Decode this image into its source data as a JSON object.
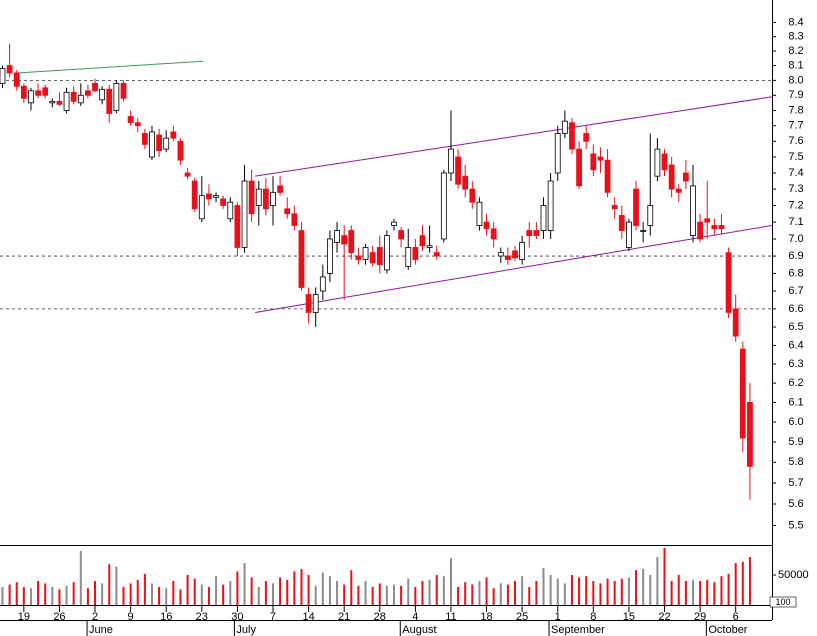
{
  "chart_data": {
    "type": "candlestick",
    "log_scale": true,
    "up_color": "#ffffff",
    "down_color": "#e8101a",
    "volume_up_color": "#8c8c8c",
    "volume_down_color": "#e8101a",
    "ylim": [
      5.41,
      8.56
    ],
    "yticks": [
      5.5,
      5.6,
      5.7,
      5.8,
      5.9,
      {
        "value": 6,
        "label": "6.0"
      },
      6.1,
      6.2,
      6.3,
      6.4,
      6.5,
      6.6,
      6.7,
      6.8,
      6.9,
      {
        "value": 7,
        "label": "7.0"
      },
      7.1,
      7.2,
      7.3,
      7.4,
      7.5,
      7.6,
      7.7,
      7.8,
      7.9,
      {
        "value": 8,
        "label": "8.0"
      },
      8.1,
      8.2,
      8.3,
      8.4
    ],
    "volume_ylim": [
      0,
      95000
    ],
    "volume_yticks": [
      50000
    ],
    "volume_note": "100",
    "xlim": [
      -0.35,
      108.1
    ],
    "xticks": [
      {
        "value": 3,
        "label": "19"
      },
      {
        "value": 8,
        "label": "26"
      },
      {
        "value": 13,
        "label": "2"
      },
      {
        "value": 18,
        "label": "9"
      },
      {
        "value": 23,
        "label": "16"
      },
      {
        "value": 28,
        "label": "23"
      },
      {
        "value": 33,
        "label": "30"
      },
      {
        "value": 38,
        "label": "7"
      },
      {
        "value": 43,
        "label": "14"
      },
      {
        "value": 48,
        "label": "21"
      },
      {
        "value": 53,
        "label": "28"
      },
      {
        "value": 58,
        "label": "4"
      },
      {
        "value": 63,
        "label": "11"
      },
      {
        "value": 68,
        "label": "18"
      },
      {
        "value": 73,
        "label": "25"
      },
      {
        "value": 78,
        "label": "1"
      },
      {
        "value": 83,
        "label": "8"
      },
      {
        "value": 88,
        "label": "15"
      },
      {
        "value": 93,
        "label": "22"
      },
      {
        "value": 98,
        "label": "29"
      },
      {
        "value": 103,
        "label": "6"
      }
    ],
    "month_ticks": [
      {
        "value": 12.3,
        "label": "June"
      },
      {
        "value": 33,
        "label": "July"
      },
      {
        "value": 56.3,
        "label": "August"
      },
      {
        "value": 77.2,
        "label": "September"
      },
      {
        "value": 99.3,
        "label": "October"
      }
    ],
    "hlines": [
      8.0,
      6.9,
      6.6
    ],
    "trendlines": [
      {
        "color": "#3a9a5a",
        "x": [
          2.0,
          28.2
        ],
        "y": [
          8.05,
          8.13
        ]
      },
      {
        "color": "#8b1a9a",
        "x": [
          35.5,
          108.1
        ],
        "y": [
          7.38,
          7.89
        ]
      },
      {
        "color": "#8b1a9a",
        "x": [
          35.5,
          108.1
        ],
        "y": [
          6.58,
          7.08
        ]
      }
    ],
    "open": [
      7.98,
      8.1,
      8.05,
      7.96,
      7.85,
      7.93,
      7.95,
      7.85,
      7.86,
      7.8,
      7.92,
      7.85,
      7.93,
      7.98,
      7.87,
      7.94,
      7.8,
      7.98,
      7.76,
      7.72,
      7.65,
      7.5,
      7.64,
      7.55,
      7.66,
      7.6,
      7.4,
      7.35,
      7.12,
      7.27,
      7.25,
      7.24,
      7.12,
      7.2,
      6.95,
      7.35,
      7.2,
      7.3,
      7.2,
      7.32,
      7.18,
      7.15,
      7.05,
      6.68,
      6.58,
      6.7,
      6.8,
      6.98,
      7.02,
      7.05,
      6.9,
      6.88,
      6.92,
      6.95,
      6.82,
      7.08,
      7.05,
      6.84,
      6.95,
      7.02,
      6.95,
      6.92,
      7.0,
      7.4,
      7.5,
      7.38,
      7.3,
      7.08,
      7.1,
      7.06,
      6.9,
      6.9,
      6.93,
      6.88,
      7.05,
      7.05,
      7.05,
      7.05,
      7.4,
      7.65,
      7.72,
      7.55,
      7.65,
      7.52,
      7.5,
      7.48,
      7.2,
      7.14,
      6.95,
      7.3,
      7.05,
      7.08,
      7.38,
      7.52,
      7.45,
      7.3,
      7.4,
      7.02,
      7.1,
      7.12,
      7.08,
      7.08,
      6.92,
      6.6,
      6.38,
      6.1
    ],
    "high": [
      8.1,
      8.25,
      8.07,
      7.98,
      7.95,
      7.98,
      7.97,
      7.88,
      7.92,
      7.95,
      7.96,
      7.98,
      7.97,
      8.01,
      7.96,
      7.97,
      8.0,
      8.0,
      7.8,
      7.75,
      7.68,
      7.7,
      7.68,
      7.67,
      7.7,
      7.62,
      7.43,
      7.37,
      7.38,
      7.33,
      7.28,
      7.26,
      7.25,
      7.22,
      7.45,
      7.42,
      7.35,
      7.37,
      7.38,
      7.38,
      7.25,
      7.2,
      7.1,
      6.72,
      6.72,
      6.85,
      7.05,
      7.1,
      7.08,
      7.08,
      6.95,
      6.97,
      6.96,
      7.02,
      7.05,
      7.12,
      7.07,
      7.06,
      7.0,
      7.08,
      7.08,
      6.96,
      7.42,
      7.8,
      7.55,
      7.45,
      7.35,
      7.25,
      7.15,
      7.1,
      6.95,
      6.95,
      6.96,
      7.02,
      7.1,
      7.1,
      7.25,
      7.4,
      7.7,
      7.8,
      7.75,
      7.6,
      7.7,
      7.58,
      7.56,
      7.55,
      7.25,
      7.2,
      7.12,
      7.35,
      7.1,
      7.65,
      7.62,
      7.55,
      7.5,
      7.33,
      7.48,
      7.45,
      7.15,
      7.35,
      7.12,
      7.15,
      6.95,
      6.68,
      6.42,
      6.2
    ],
    "low": [
      7.95,
      8.02,
      7.93,
      7.85,
      7.8,
      7.88,
      7.88,
      7.82,
      7.83,
      7.78,
      7.84,
      7.83,
      7.88,
      7.92,
      7.84,
      7.72,
      7.78,
      7.86,
      7.7,
      7.66,
      7.55,
      7.48,
      7.5,
      7.53,
      7.6,
      7.45,
      7.36,
      7.16,
      7.1,
      7.2,
      7.22,
      7.18,
      7.1,
      6.9,
      6.92,
      7.1,
      7.08,
      7.14,
      7.08,
      7.26,
      7.12,
      7.05,
      6.7,
      6.52,
      6.5,
      6.65,
      6.75,
      6.92,
      6.65,
      6.88,
      6.85,
      6.85,
      6.84,
      6.8,
      6.8,
      7.05,
      6.95,
      6.82,
      6.85,
      6.93,
      6.92,
      6.88,
      6.98,
      7.35,
      7.3,
      7.25,
      7.18,
      7.05,
      7.02,
      6.95,
      6.86,
      6.85,
      6.87,
      6.85,
      6.95,
      7.0,
      7.0,
      7.0,
      7.35,
      7.62,
      7.52,
      7.3,
      7.55,
      7.38,
      7.4,
      7.25,
      7.12,
      7.0,
      6.93,
      7.05,
      6.98,
      7.02,
      7.35,
      7.38,
      7.25,
      7.22,
      7.3,
      6.98,
      6.98,
      7.0,
      7.02,
      7.03,
      6.55,
      6.42,
      5.85,
      5.62
    ],
    "close": [
      8.08,
      8.05,
      7.96,
      7.88,
      7.93,
      7.9,
      7.9,
      7.86,
      7.84,
      7.92,
      7.86,
      7.9,
      7.9,
      7.93,
      7.94,
      7.78,
      7.98,
      7.88,
      7.72,
      7.7,
      7.58,
      7.66,
      7.54,
      7.62,
      7.62,
      7.48,
      7.38,
      7.18,
      7.26,
      7.24,
      7.26,
      7.2,
      7.22,
      6.95,
      7.35,
      7.15,
      7.3,
      7.18,
      7.28,
      7.28,
      7.15,
      7.08,
      6.72,
      6.58,
      6.68,
      6.78,
      7.0,
      7.05,
      6.97,
      6.92,
      6.88,
      6.95,
      6.86,
      6.85,
      7.02,
      7.1,
      7.0,
      6.95,
      6.88,
      6.96,
      6.96,
      6.9,
      7.4,
      7.55,
      7.33,
      7.3,
      7.22,
      7.22,
      7.06,
      7.0,
      6.92,
      6.88,
      6.89,
      6.98,
      7.02,
      7.02,
      7.2,
      7.35,
      7.65,
      7.73,
      7.55,
      7.32,
      7.6,
      7.42,
      7.48,
      7.28,
      7.18,
      7.05,
      7.1,
      7.08,
      7.05,
      7.2,
      7.55,
      7.42,
      7.3,
      7.28,
      7.35,
      7.32,
      7.0,
      7.1,
      7.06,
      7.06,
      6.58,
      6.45,
      5.92,
      5.78
    ],
    "volume": [
      30000,
      34000,
      38000,
      30000,
      28000,
      40000,
      36000,
      30000,
      26000,
      32000,
      38000,
      90000,
      28000,
      40000,
      36000,
      68000,
      64000,
      30000,
      36000,
      42000,
      52000,
      36000,
      30000,
      28000,
      40000,
      26000,
      50000,
      44000,
      34000,
      30000,
      48000,
      34000,
      40000,
      56000,
      70000,
      46000,
      30000,
      40000,
      36000,
      46000,
      42000,
      56000,
      60000,
      50000,
      32000,
      54000,
      48000,
      40000,
      34000,
      58000,
      32000,
      40000,
      30000,
      36000,
      32000,
      34000,
      32000,
      44000,
      30000,
      40000,
      42000,
      50000,
      48000,
      78000,
      30000,
      38000,
      34000,
      40000,
      46000,
      28000,
      36000,
      34000,
      40000,
      48000,
      30000,
      40000,
      62000,
      50000,
      44000,
      36000,
      50000,
      46000,
      48000,
      40000,
      36000,
      44000,
      40000,
      44000,
      46000,
      58000,
      60000,
      50000,
      80000,
      95000,
      40000,
      50000,
      40000,
      42000,
      40000,
      42000,
      38000,
      48000,
      52000,
      70000,
      72000,
      80000
    ]
  }
}
